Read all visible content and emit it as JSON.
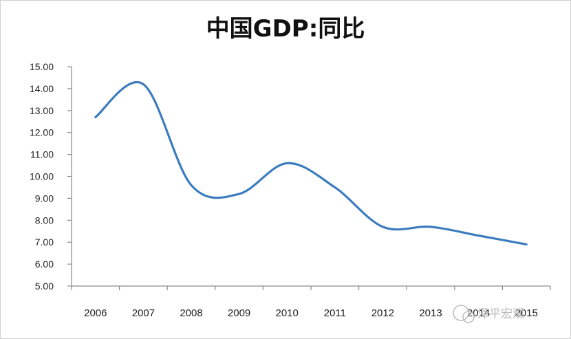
{
  "chart_data": {
    "type": "line",
    "title": "中国GDP:同比",
    "xlabel": "",
    "ylabel": "",
    "categories": [
      "2006",
      "2007",
      "2008",
      "2009",
      "2010",
      "2011",
      "2012",
      "2013",
      "2014",
      "2015"
    ],
    "series": [
      {
        "values": [
          12.7,
          14.2,
          9.6,
          9.2,
          10.6,
          9.5,
          7.7,
          7.7,
          7.3,
          6.9
        ],
        "color": "#3b7bbf",
        "smooth": true
      }
    ],
    "yticks": [
      "15.00",
      "14.00",
      "13.00",
      "12.00",
      "11.00",
      "10.00",
      "9.00",
      "8.00",
      "7.00",
      "6.00",
      "5.00"
    ],
    "ylim": [
      5,
      15
    ],
    "grid": false,
    "legend": "none"
  },
  "watermark": {
    "text": "泽平宏观",
    "icon": "wechat-icon"
  }
}
